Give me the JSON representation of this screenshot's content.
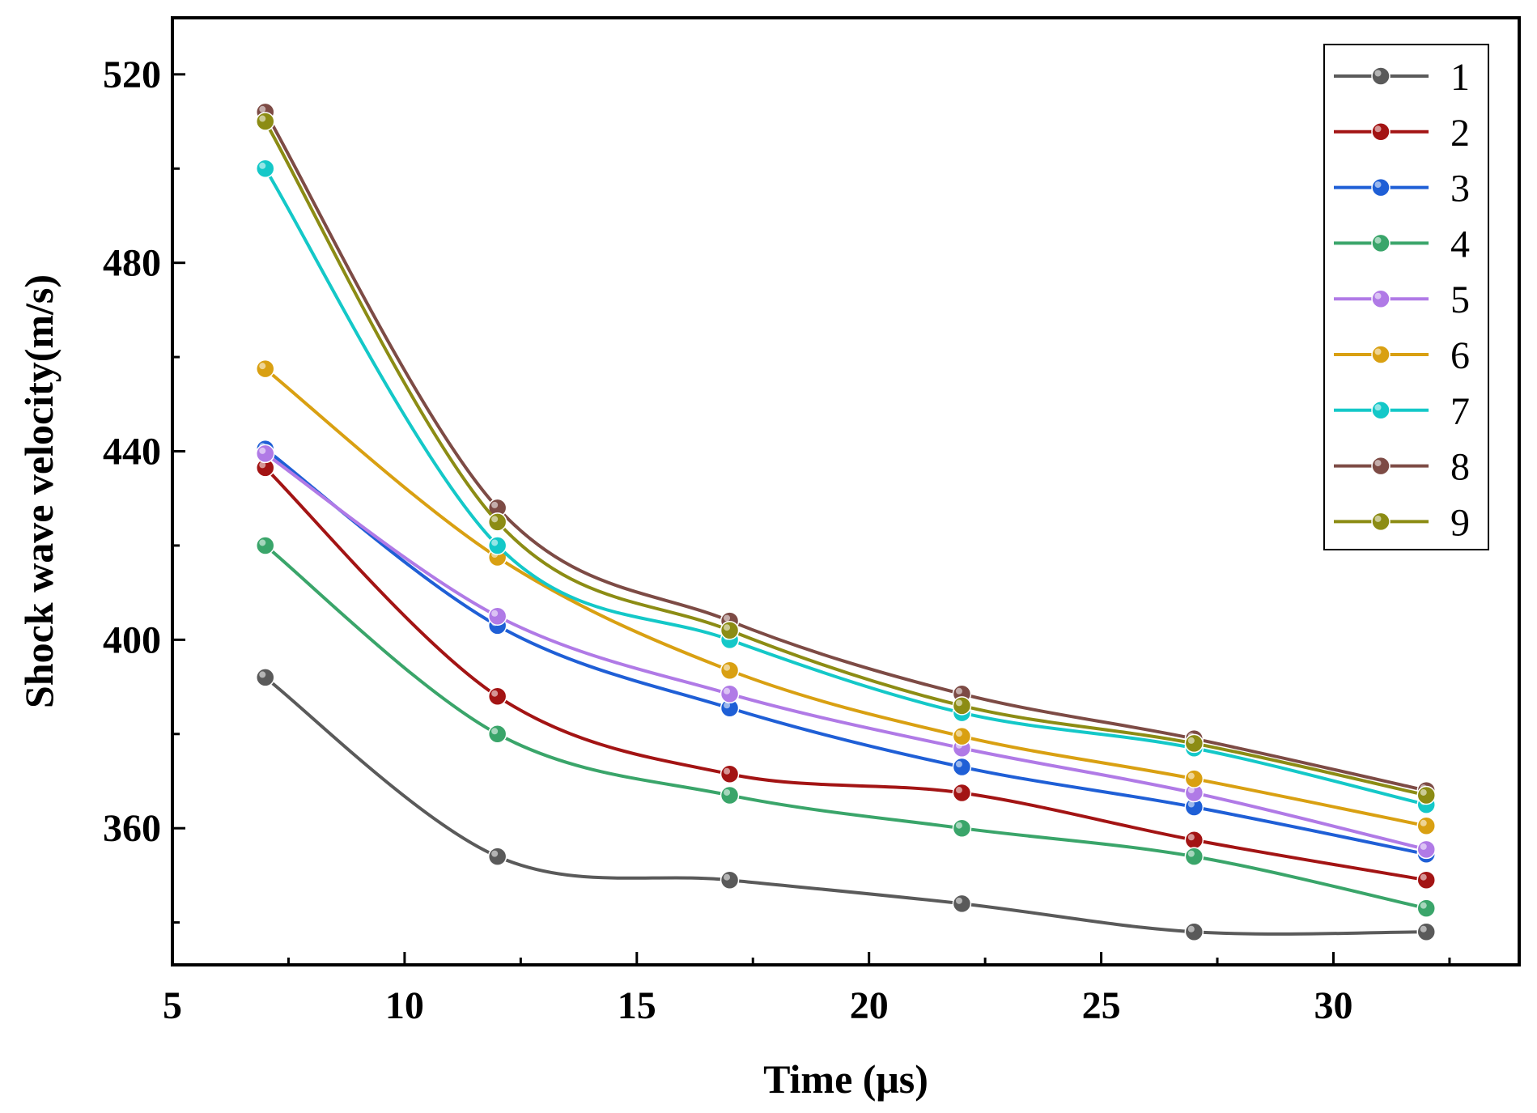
{
  "chart_data": {
    "type": "line",
    "title": "",
    "xlabel": "Time (μs)",
    "ylabel": "Shock wave velocity(m/s)",
    "xlim": [
      5,
      34
    ],
    "ylim": [
      331,
      532
    ],
    "xticks": [
      5,
      10,
      15,
      20,
      25,
      30
    ],
    "xtick_labels": [
      "5",
      "10",
      "15",
      "20",
      "25",
      "30"
    ],
    "yticks": [
      360,
      400,
      440,
      480,
      520
    ],
    "ytick_labels": [
      "360",
      "400",
      "440",
      "480",
      "520"
    ],
    "legend_position": "top-right",
    "grid": false,
    "x": [
      7,
      12,
      17,
      22,
      27,
      32
    ],
    "series": [
      {
        "name": "1",
        "color": "#5a5a5a",
        "values": [
          392,
          354,
          349,
          344,
          338,
          338
        ]
      },
      {
        "name": "2",
        "color": "#a31414",
        "values": [
          436.5,
          388,
          371.5,
          367.5,
          357.5,
          349
        ]
      },
      {
        "name": "3",
        "color": "#1f5fd6",
        "values": [
          440.5,
          403,
          385.5,
          373,
          364.5,
          354.5
        ]
      },
      {
        "name": "4",
        "color": "#3aa56a",
        "values": [
          420,
          380,
          367,
          360,
          354,
          343
        ]
      },
      {
        "name": "5",
        "color": "#b07ae6",
        "values": [
          439.5,
          405,
          388.5,
          377,
          367.5,
          355.5
        ]
      },
      {
        "name": "6",
        "color": "#d9a012",
        "values": [
          457.5,
          417.5,
          393.5,
          379.5,
          370.5,
          360.5
        ]
      },
      {
        "name": "7",
        "color": "#14c8c8",
        "values": [
          500,
          420,
          400,
          384.5,
          377,
          365
        ]
      },
      {
        "name": "8",
        "color": "#7d4b45",
        "values": [
          512,
          428,
          404,
          388.5,
          379,
          368
        ]
      },
      {
        "name": "9",
        "color": "#8c8c14",
        "values": [
          510,
          425,
          402,
          386,
          378,
          367
        ]
      }
    ]
  }
}
